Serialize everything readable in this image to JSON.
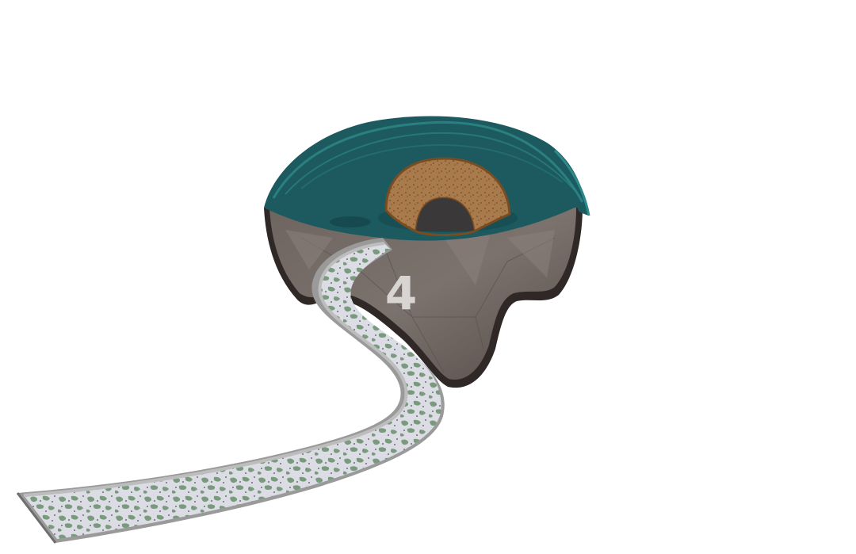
{
  "level_node": {
    "label": "4"
  },
  "colors": {
    "background": "#ffffff",
    "rock_dark": "#2f2826",
    "rock_mid": "#6a615d",
    "rock_light": "#857b76",
    "grass_top": "#1c5a60",
    "grass_highlight": "#2e8a8a",
    "cave_arch": "#a97a4c",
    "cave_rim": "#7a4c22",
    "cave_hole": "#3a3838",
    "path_fill": "#dcdde4",
    "path_pattern": "#7a9a7e",
    "path_edge": "#8c8c8c"
  },
  "icons": [
    "rock-island",
    "cave-entrance",
    "stone-path"
  ]
}
